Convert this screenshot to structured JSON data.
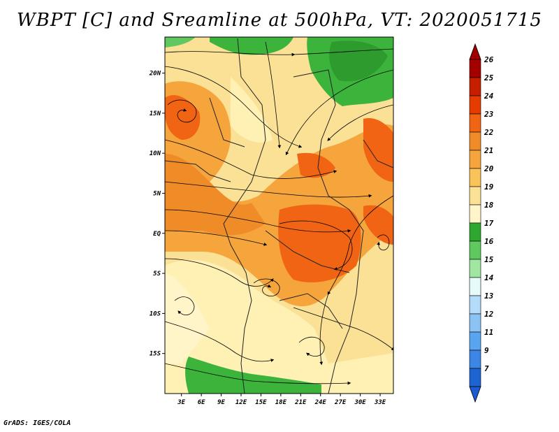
{
  "title": "WBPT [C] and Sreamline at 500hPa, VT: 2020051715",
  "credit": "GrADS: IGES/COLA",
  "map": {
    "lon_labels": [
      "3E",
      "6E",
      "9E",
      "12E",
      "15E",
      "18E",
      "21E",
      "24E",
      "27E",
      "30E",
      "33E"
    ],
    "lat_labels": [
      "20N",
      "15N",
      "10N",
      "5N",
      "EQ",
      "5S",
      "10S",
      "15S"
    ],
    "lon_range": [
      0.5,
      35
    ],
    "lat_range": [
      -20,
      24.5
    ]
  },
  "colorbar": {
    "levels": [
      "26",
      "25",
      "24",
      "23",
      "22",
      "21",
      "20",
      "19",
      "18",
      "17",
      "16",
      "15",
      "14",
      "13",
      "12",
      "11",
      "9",
      "7"
    ],
    "colors": [
      "#a50000",
      "#c81e00",
      "#e63c00",
      "#f06414",
      "#f08c28",
      "#f5a53c",
      "#fac35a",
      "#fae196",
      "#fff5c8",
      "#2ea82e",
      "#5fc85f",
      "#a0e6a0",
      "#e6fafa",
      "#b4dcfa",
      "#8cc3f5",
      "#5aa5f0",
      "#3c87e6",
      "#1e64d2"
    ],
    "top_color": "#a00000",
    "bottom_color": "#1e5ad2"
  }
}
